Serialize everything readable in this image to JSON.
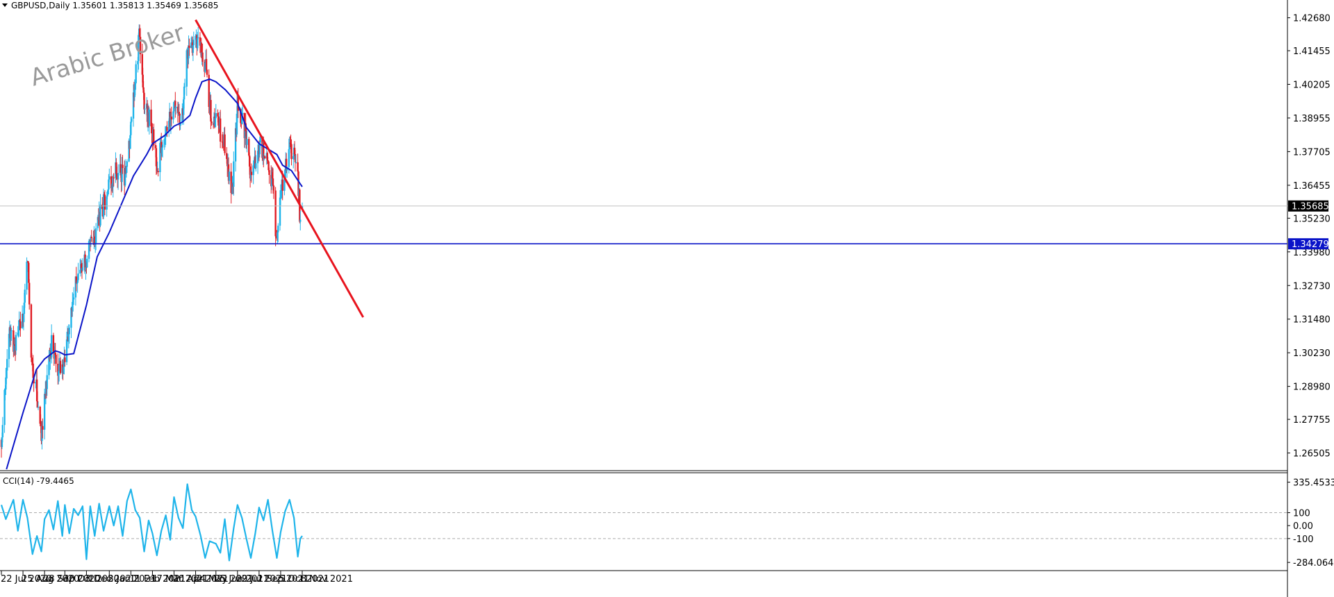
{
  "header": {
    "symbol_line": "GBPUSD,Daily  1.35601 1.35813 1.35469 1.35685",
    "indicator_line": "CCI(14) -79.4465"
  },
  "watermark": "Arabic Broker",
  "colors": {
    "bull": "#1eb4ea",
    "bear": "#e01b22",
    "ma": "#0a14c8",
    "trendline": "#e8141e",
    "support": "#0a14c8",
    "cci": "#1eb4ea",
    "price_tag_bg": "#000000",
    "support_tag_bg": "#0a14c8"
  },
  "price_tags": {
    "current": "1.35685",
    "support": "1.34279"
  },
  "chart_data": [
    {
      "type": "candlestick",
      "symbol": "GBPUSD",
      "timeframe": "Daily",
      "ohlc_last": {
        "open": 1.35601,
        "high": 1.35813,
        "low": 1.35469,
        "close": 1.35685
      },
      "ylim": [
        1.259,
        1.4303
      ],
      "y_ticks": [
        "1.42680",
        "1.41455",
        "1.40205",
        "1.38955",
        "1.37705",
        "1.36455",
        "1.35230",
        "1.33980",
        "1.32730",
        "1.31480",
        "1.30230",
        "1.28980",
        "1.27755",
        "1.26505"
      ],
      "x_ticks": [
        "22 Jul 2020",
        "25 Aug 2020",
        "28 Sep 2020",
        "30 Oct 2020",
        "3 Dec 2020",
        "8 Jan 2021",
        "11 Feb 2021",
        "17 Mar 2021",
        "20 Apr 2021",
        "24 May 2021",
        "25 Jun 2021",
        "29 Jul 2021",
        "1 Sep 2021",
        "5 Oct 2021",
        "8 Nov 2021"
      ],
      "close_path": [
        [
          "22 Jul 2020",
          1.27
        ],
        [
          "3 Aug 2020",
          1.31
        ],
        [
          "10 Aug 2020",
          1.305
        ],
        [
          "25 Aug 2020",
          1.315
        ],
        [
          "1 Sep 2020",
          1.34
        ],
        [
          "8 Sep 2020",
          1.295
        ],
        [
          "15 Sep 2020",
          1.29
        ],
        [
          "23 Sep 2020",
          1.27
        ],
        [
          "28 Sep 2020",
          1.285
        ],
        [
          "9 Oct 2020",
          1.305
        ],
        [
          "20 Oct 2020",
          1.295
        ],
        [
          "30 Oct 2020",
          1.3
        ],
        [
          "12 Nov 2020",
          1.325
        ],
        [
          "3 Dec 2020",
          1.338
        ],
        [
          "15 Dec 2020",
          1.345
        ],
        [
          "8 Jan 2021",
          1.365
        ],
        [
          "20 Jan 2021",
          1.37
        ],
        [
          "1 Feb 2021",
          1.368
        ],
        [
          "11 Feb 2021",
          1.385
        ],
        [
          "24 Feb 2021",
          1.42
        ],
        [
          "4 Mar 2021",
          1.395
        ],
        [
          "17 Mar 2021",
          1.385
        ],
        [
          "25 Mar 2021",
          1.372
        ],
        [
          "1 Apr 2021",
          1.38
        ],
        [
          "20 Apr 2021",
          1.395
        ],
        [
          "1 May 2021",
          1.385
        ],
        [
          "10 May 2021",
          1.413
        ],
        [
          "24 May 2021",
          1.42
        ],
        [
          "3 Jun 2021",
          1.415
        ],
        [
          "11 Jun 2021",
          1.405
        ],
        [
          "17 Jun 2021",
          1.39
        ],
        [
          "25 Jun 2021",
          1.39
        ],
        [
          "8 Jul 2021",
          1.38
        ],
        [
          "20 Jul 2021",
          1.36
        ],
        [
          "29 Jul 2021",
          1.395
        ],
        [
          "10 Aug 2021",
          1.385
        ],
        [
          "20 Aug 2021",
          1.365
        ],
        [
          "1 Sep 2021",
          1.38
        ],
        [
          "15 Sep 2021",
          1.375
        ],
        [
          "22 Sep 2021",
          1.365
        ],
        [
          "29 Sep 2021",
          1.343
        ],
        [
          "5 Oct 2021",
          1.36
        ],
        [
          "15 Oct 2021",
          1.375
        ],
        [
          "22 Oct 2021",
          1.378
        ],
        [
          "1 Nov 2021",
          1.37
        ],
        [
          "5 Nov 2021",
          1.348
        ],
        [
          "8 Nov 2021",
          1.35685
        ]
      ],
      "moving_average": [
        [
          "30 Jul 2020",
          1.259
        ],
        [
          "25 Aug 2020",
          1.28
        ],
        [
          "15 Sep 2020",
          1.296
        ],
        [
          "28 Sep 2020",
          1.3
        ],
        [
          "15 Oct 2020",
          1.303
        ],
        [
          "22 Oct 2020",
          1.3025
        ],
        [
          "30 Oct 2020",
          1.3015
        ],
        [
          "13 Nov 2020",
          1.302
        ],
        [
          "3 Dec 2020",
          1.32
        ],
        [
          "20 Dec 2020",
          1.338
        ],
        [
          "8 Jan 2021",
          1.347
        ],
        [
          "28 Jan 2021",
          1.358
        ],
        [
          "15 Feb 2021",
          1.368
        ],
        [
          "8 Mar 2021",
          1.376
        ],
        [
          "17 Mar 2021",
          1.38
        ],
        [
          "5 Apr 2021",
          1.383
        ],
        [
          "20 Apr 2021",
          1.3865
        ],
        [
          "3 May 2021",
          1.388
        ],
        [
          "15 May 2021",
          1.3905
        ],
        [
          "24 May 2021",
          1.397
        ],
        [
          "3 Jun 2021",
          1.403
        ],
        [
          "15 Jun 2021",
          1.404
        ],
        [
          "25 Jun 2021",
          1.403
        ],
        [
          "10 Jul 2021",
          1.4
        ],
        [
          "29 Jul 2021",
          1.395
        ],
        [
          "12 Aug 2021",
          1.386
        ],
        [
          "1 Sep 2021",
          1.38
        ],
        [
          "15 Sep 2021",
          1.378
        ],
        [
          "29 Sep 2021",
          1.376
        ],
        [
          "8 Oct 2021",
          1.372
        ],
        [
          "22 Oct 2021",
          1.37
        ],
        [
          "5 Nov 2021",
          1.365
        ],
        [
          "8 Nov 2021",
          1.364
        ]
      ],
      "trendline": [
        [
          "24 May 2021",
          1.426
        ],
        [
          "12 Feb 2022",
          1.3155
        ]
      ],
      "support_level": 1.34279
    },
    {
      "type": "line",
      "name": "CCI(14)",
      "last_value": -79.4465,
      "ylim": [
        -310,
        360
      ],
      "y_ticks": [
        "335.4533",
        "100",
        "0.00",
        "-100",
        "-284.0641"
      ],
      "levels": [
        100,
        -100
      ],
      "points": [
        [
          "22 Jul 2020",
          160
        ],
        [
          "29 Jul 2020",
          50
        ],
        [
          "10 Aug 2020",
          200
        ],
        [
          "17 Aug 2020",
          -40
        ],
        [
          "25 Aug 2020",
          200
        ],
        [
          "1 Sep 2020",
          60
        ],
        [
          "9 Sep 2020",
          -220
        ],
        [
          "16 Sep 2020",
          -80
        ],
        [
          "23 Sep 2020",
          -200
        ],
        [
          "28 Sep 2020",
          50
        ],
        [
          "5 Oct 2020",
          120
        ],
        [
          "12 Oct 2020",
          -30
        ],
        [
          "19 Oct 2020",
          190
        ],
        [
          "26 Oct 2020",
          -80
        ],
        [
          "30 Oct 2020",
          160
        ],
        [
          "6 Nov 2020",
          -60
        ],
        [
          "13 Nov 2020",
          130
        ],
        [
          "20 Nov 2020",
          80
        ],
        [
          "27 Nov 2020",
          150
        ],
        [
          "3 Dec 2020",
          -260
        ],
        [
          "9 Dec 2020",
          150
        ],
        [
          "16 Dec 2020",
          -80
        ],
        [
          "23 Dec 2020",
          170
        ],
        [
          "30 Dec 2020",
          -40
        ],
        [
          "8 Jan 2021",
          150
        ],
        [
          "15 Jan 2021",
          0
        ],
        [
          "22 Jan 2021",
          150
        ],
        [
          "29 Jan 2021",
          -80
        ],
        [
          "5 Feb 2021",
          190
        ],
        [
          "11 Feb 2021",
          280
        ],
        [
          "18 Feb 2021",
          120
        ],
        [
          "25 Feb 2021",
          60
        ],
        [
          "4 Mar 2021",
          -200
        ],
        [
          "11 Mar 2021",
          40
        ],
        [
          "17 Mar 2021",
          -60
        ],
        [
          "24 Mar 2021",
          -230
        ],
        [
          "31 Mar 2021",
          -40
        ],
        [
          "7 Apr 2021",
          80
        ],
        [
          "14 Apr 2021",
          -110
        ],
        [
          "20 Apr 2021",
          220
        ],
        [
          "27 Apr 2021",
          60
        ],
        [
          "4 May 2021",
          -20
        ],
        [
          "11 May 2021",
          320
        ],
        [
          "18 May 2021",
          120
        ],
        [
          "24 May 2021",
          70
        ],
        [
          "1 Jun 2021",
          -80
        ],
        [
          "8 Jun 2021",
          -250
        ],
        [
          "15 Jun 2021",
          -120
        ],
        [
          "25 Jun 2021",
          -140
        ],
        [
          "2 Jul 2021",
          -210
        ],
        [
          "9 Jul 2021",
          50
        ],
        [
          "16 Jul 2021",
          -270
        ],
        [
          "23 Jul 2021",
          -20
        ],
        [
          "29 Jul 2021",
          160
        ],
        [
          "5 Aug 2021",
          60
        ],
        [
          "12 Aug 2021",
          -100
        ],
        [
          "19 Aug 2021",
          -250
        ],
        [
          "26 Aug 2021",
          -60
        ],
        [
          "1 Sep 2021",
          140
        ],
        [
          "8 Sep 2021",
          40
        ],
        [
          "15 Sep 2021",
          200
        ],
        [
          "22 Sep 2021",
          -40
        ],
        [
          "29 Sep 2021",
          -250
        ],
        [
          "5 Oct 2021",
          -50
        ],
        [
          "12 Oct 2021",
          110
        ],
        [
          "19 Oct 2021",
          200
        ],
        [
          "26 Oct 2021",
          60
        ],
        [
          "1 Nov 2021",
          -240
        ],
        [
          "5 Nov 2021",
          -100
        ],
        [
          "8 Nov 2021",
          -79.4465
        ]
      ]
    }
  ]
}
